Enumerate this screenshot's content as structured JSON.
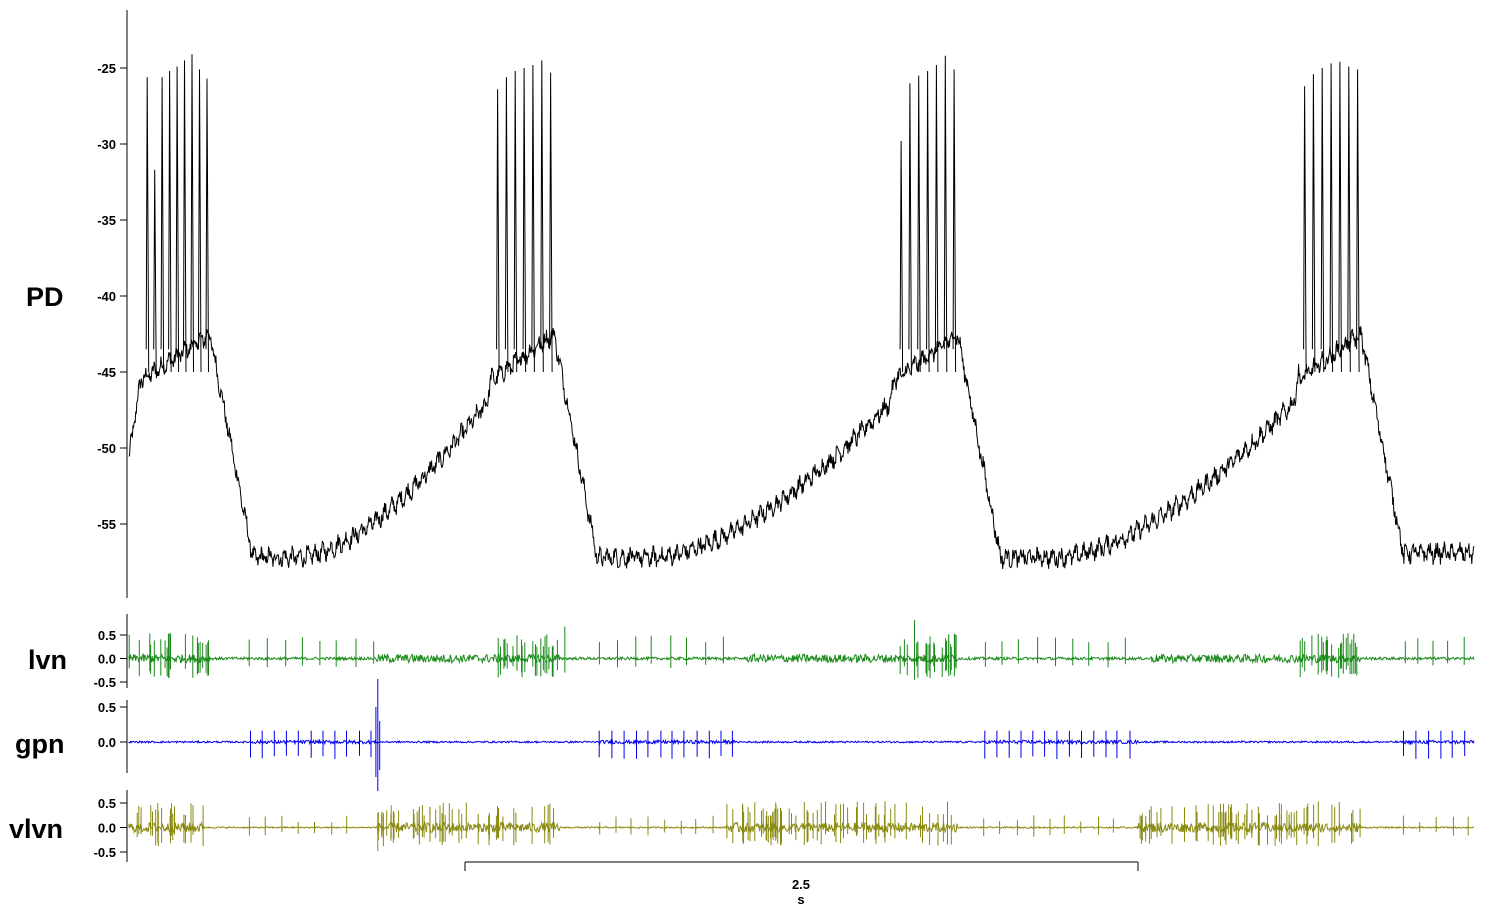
{
  "chart_data": [
    {
      "type": "line",
      "name": "PD",
      "label": "PD",
      "ylim": [
        -59,
        -23.5
      ],
      "y_ticks": [
        -25,
        -30,
        -35,
        -40,
        -45,
        -50,
        -55
      ],
      "y_tick_labels": [
        "-25",
        "-30",
        "-35",
        "-40",
        "-45",
        "-50",
        "-55"
      ],
      "color": "#000000",
      "grid": false,
      "bursts": [
        {
          "t_start": 0.05,
          "t_end": 0.3,
          "spike_peaks": [
            -25.6,
            -31.7,
            -25.6,
            -25.2,
            -24.9,
            -24.5,
            -24.1,
            -25.1,
            -25.7
          ]
        },
        {
          "t_start": 1.35,
          "t_end": 1.58,
          "spike_peaks": [
            -26.4,
            -25.6,
            -25.2,
            -25.0,
            -24.8,
            -24.5,
            -25.3
          ]
        },
        {
          "t_start": 2.85,
          "t_end": 3.08,
          "spike_peaks": [
            -29.8,
            -26.0,
            -25.5,
            -25.2,
            -24.8,
            -24.2,
            -25.1
          ]
        },
        {
          "t_start": 4.35,
          "t_end": 4.58,
          "spike_peaks": [
            -26.2,
            -25.4,
            -25.0,
            -24.7,
            -24.6,
            -24.9,
            -25.1
          ]
        }
      ],
      "baseline_trough": -57.2,
      "burst_plateau": -42.5,
      "start_value": -50.7
    },
    {
      "type": "line",
      "name": "lvn",
      "label": "lvn",
      "ylim": [
        -0.6,
        0.7
      ],
      "y_ticks": [
        0.5,
        0.0,
        -0.5
      ],
      "y_tick_labels": [
        "0.5",
        "0.0",
        "-0.5"
      ],
      "color": "#1a8a1a"
    },
    {
      "type": "line",
      "name": "gpn",
      "label": "gpn",
      "ylim": [
        -0.7,
        0.9
      ],
      "y_ticks": [
        0.5,
        0.0
      ],
      "y_tick_labels": [
        "0.5",
        "0.0"
      ],
      "color": "#0000ee"
    },
    {
      "type": "line",
      "name": "vlvn",
      "label": "vlvn",
      "ylim": [
        -0.6,
        0.7
      ],
      "y_ticks": [
        0.5,
        0.0,
        -0.5
      ],
      "y_tick_labels": [
        "0.5",
        "0.0",
        "-0.5"
      ],
      "color": "#8a8a10"
    }
  ],
  "time_range_s": [
    0,
    5.0
  ],
  "scale_bar": {
    "value": "2.5",
    "unit": "s"
  }
}
